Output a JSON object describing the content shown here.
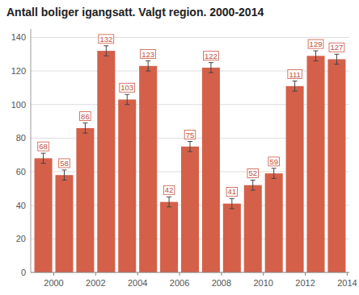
{
  "chart_data": {
    "type": "bar",
    "title": "Antall boliger igangsatt. Valgt region. 2000-2014",
    "x": [
      2000,
      2001,
      2002,
      2003,
      2004,
      2005,
      2006,
      2007,
      2008,
      2009,
      2010,
      2011,
      2012,
      2013,
      2014
    ],
    "values": [
      68,
      58,
      86,
      132,
      103,
      123,
      42,
      75,
      122,
      41,
      52,
      59,
      111,
      129,
      127
    ],
    "errors": [
      3,
      3,
      3,
      3,
      3,
      3,
      3,
      3,
      3,
      3,
      3,
      3,
      3,
      3,
      3
    ],
    "color": "#d4604a",
    "xlim": [
      1999.4,
      2014.6
    ],
    "xticks": [
      {
        "value": 2000.5,
        "label": "2000"
      },
      {
        "value": 2002.5,
        "label": "2002"
      },
      {
        "value": 2004.5,
        "label": "2004"
      },
      {
        "value": 2006.5,
        "label": "2006"
      },
      {
        "value": 2008.5,
        "label": "2008"
      },
      {
        "value": 2010.5,
        "label": "2010"
      },
      {
        "value": 2012.5,
        "label": "2012"
      },
      {
        "value": 2014.5,
        "label": "2014"
      }
    ],
    "ylim": [
      0,
      145
    ],
    "yticks": [
      0,
      20,
      40,
      60,
      80,
      100,
      120,
      140
    ],
    "grid": true,
    "data_labels": true
  }
}
